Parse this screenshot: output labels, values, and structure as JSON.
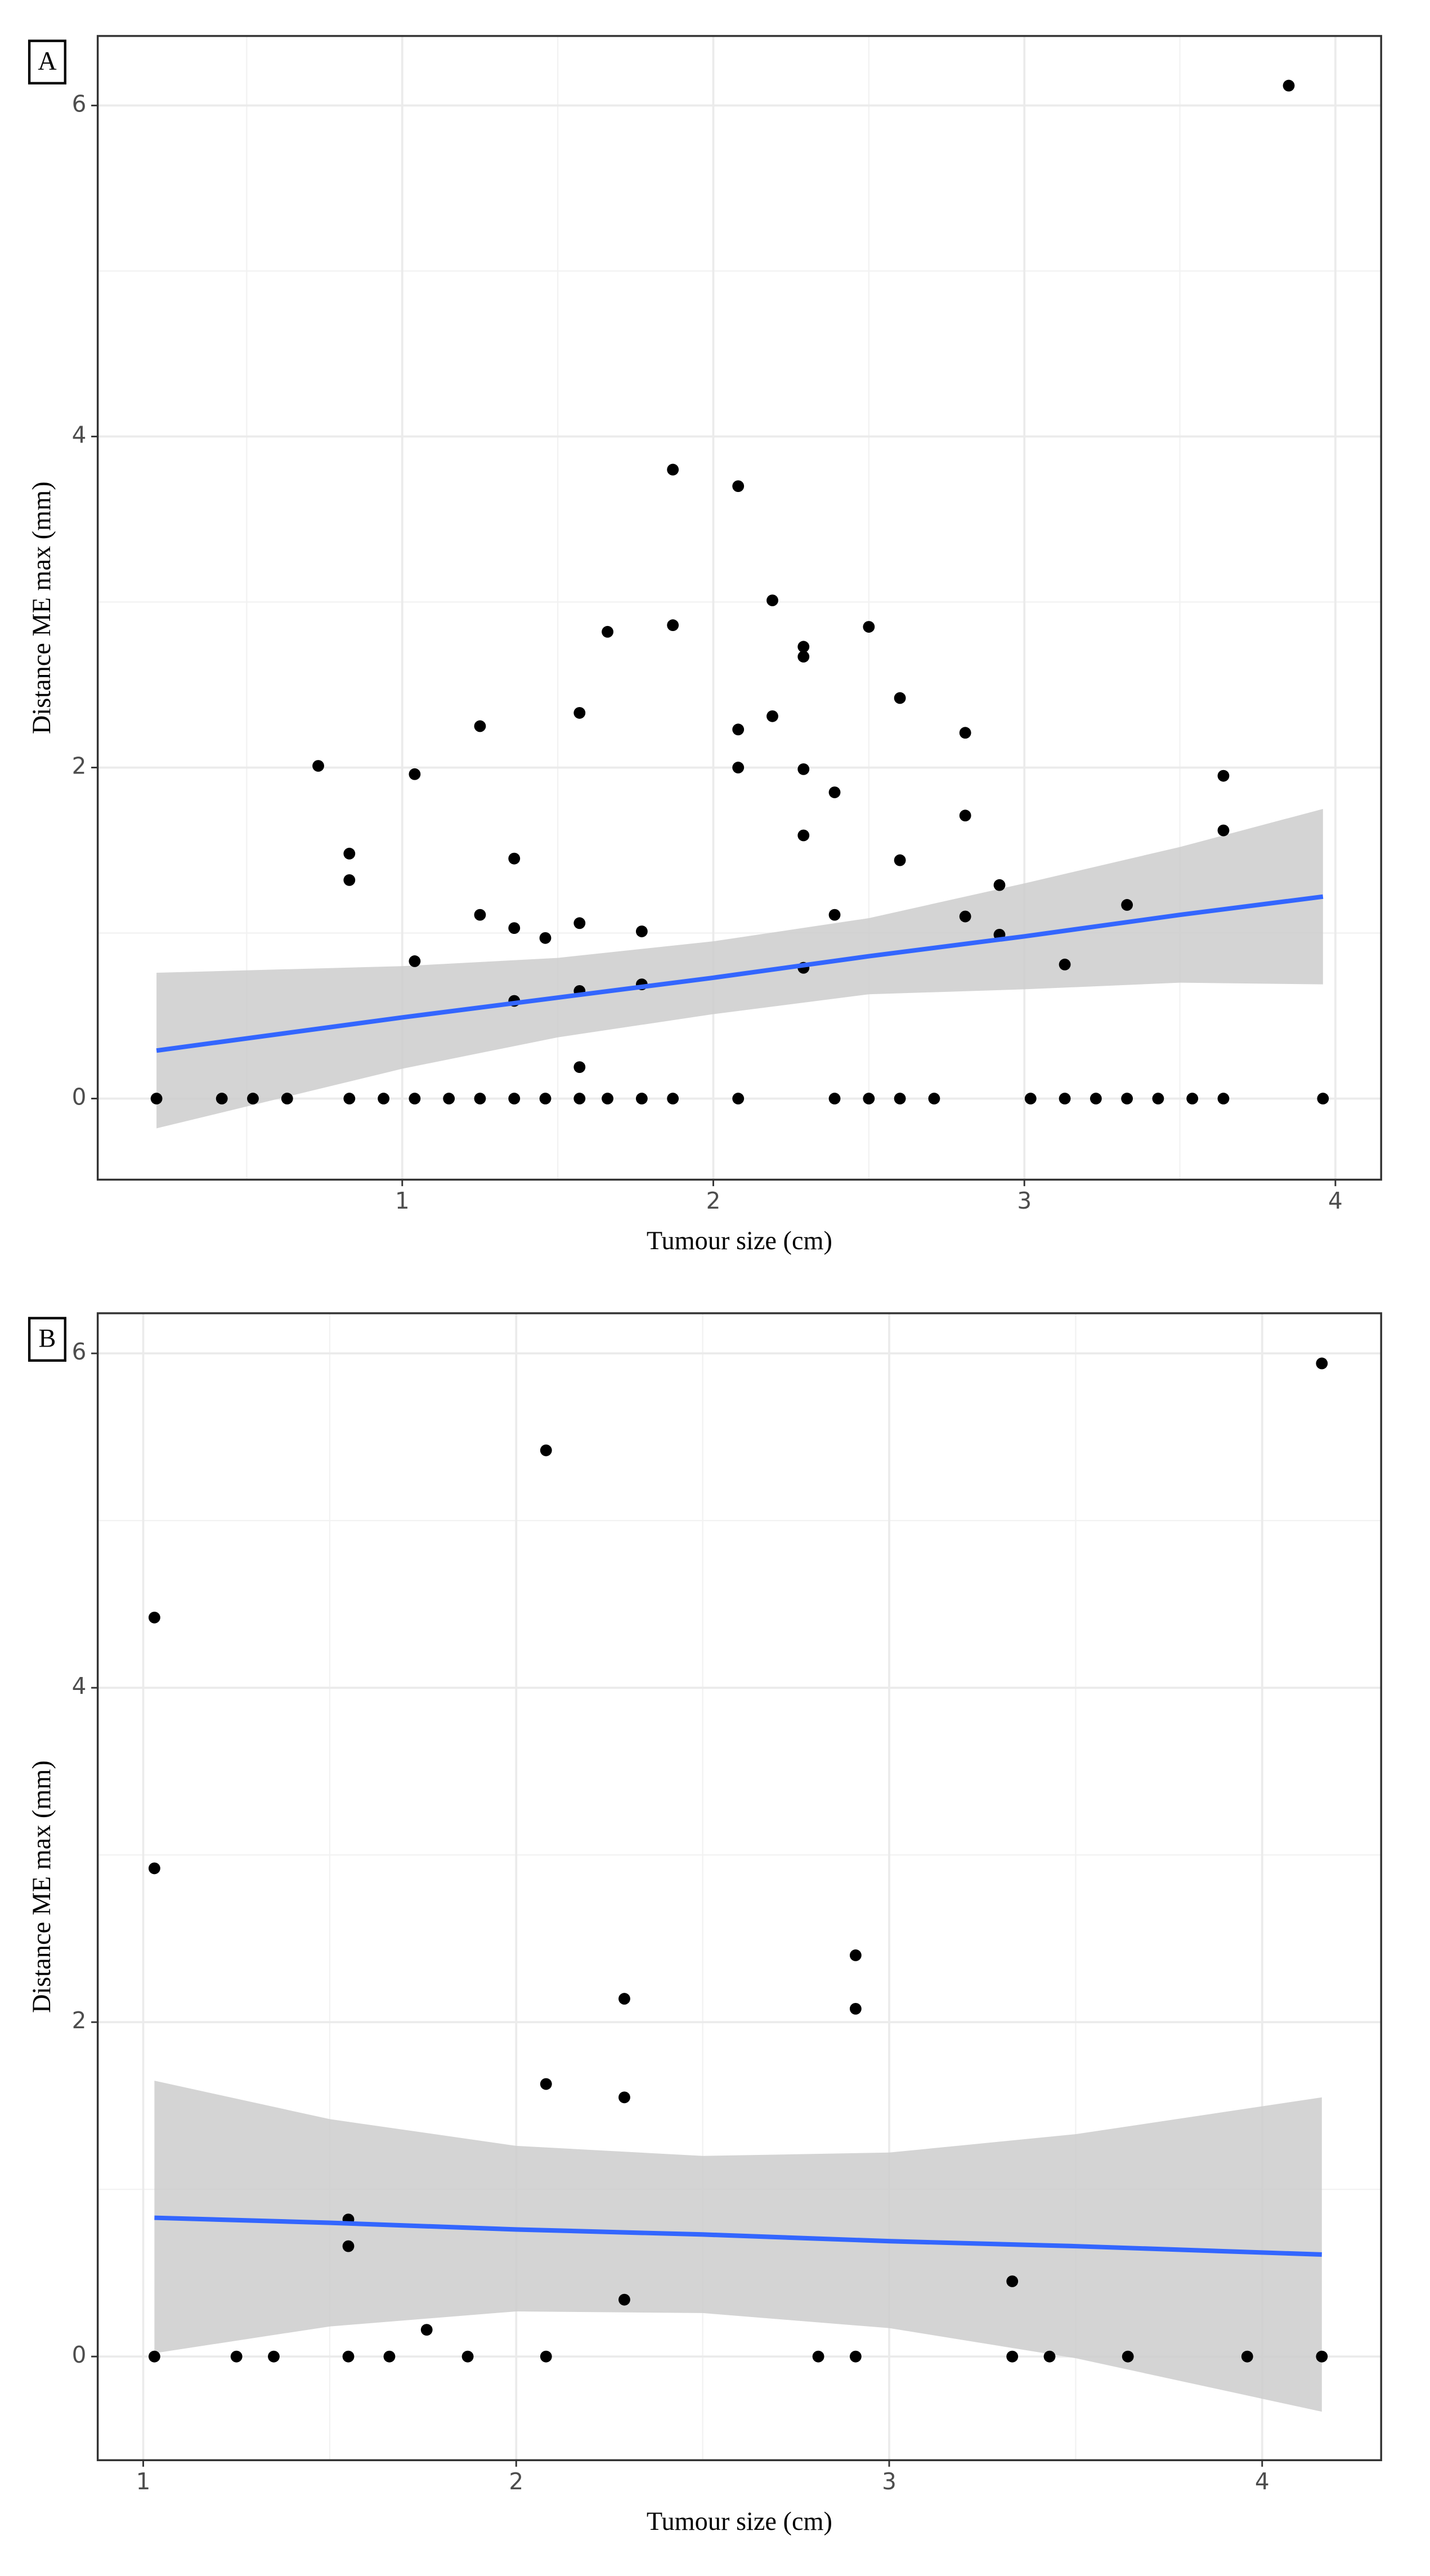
{
  "chart_data": [
    {
      "type": "scatter",
      "label": "A",
      "xlabel": "Tumour size (cm)",
      "ylabel": "Distance ME max (mm)",
      "xlim": [
        0.021,
        4.147
      ],
      "ylim": [
        -0.49,
        6.42
      ],
      "xticks": [
        1,
        2,
        3,
        4
      ],
      "yticks": [
        0,
        2,
        4,
        6
      ],
      "grid": true,
      "color": "#000000",
      "x": [
        0.21,
        0.42,
        0.52,
        0.63,
        0.73,
        0.83,
        0.83,
        0.83,
        0.94,
        1.04,
        1.04,
        1.04,
        1.15,
        1.25,
        1.25,
        1.25,
        1.36,
        1.36,
        1.36,
        1.36,
        1.46,
        1.46,
        1.57,
        1.57,
        1.57,
        1.57,
        1.57,
        1.66,
        1.66,
        1.77,
        1.77,
        1.77,
        1.87,
        1.87,
        1.87,
        2.08,
        2.08,
        2.08,
        2.08,
        2.19,
        2.19,
        2.29,
        2.29,
        2.29,
        2.29,
        2.29,
        2.39,
        2.39,
        2.39,
        2.5,
        2.5,
        2.6,
        2.6,
        2.6,
        2.71,
        2.81,
        2.81,
        2.81,
        2.92,
        2.92,
        3.02,
        3.13,
        3.13,
        3.23,
        3.33,
        3.33,
        3.43,
        3.54,
        3.64,
        3.64,
        3.64,
        3.85,
        3.96
      ],
      "values": [
        0,
        0,
        0,
        0,
        2.01,
        1.48,
        1.32,
        0,
        0,
        1.96,
        0.83,
        0,
        0,
        2.25,
        1.11,
        0,
        1.45,
        1.03,
        0.59,
        0,
        0.97,
        0,
        2.33,
        1.06,
        0.65,
        0.19,
        0,
        2.82,
        0,
        1.01,
        0.69,
        0,
        3.8,
        2.86,
        0,
        3.7,
        2.23,
        2.0,
        0,
        3.01,
        2.31,
        2.73,
        2.67,
        1.99,
        1.59,
        0.79,
        1.85,
        1.11,
        0,
        2.85,
        0,
        2.42,
        1.44,
        0,
        0,
        2.21,
        1.71,
        1.1,
        1.29,
        0.99,
        0,
        0.81,
        0,
        0,
        1.17,
        0,
        0,
        0,
        1.95,
        1.62,
        0,
        6.12,
        0
      ],
      "fit": {
        "color": "#3366ff",
        "band_color": "#cccccc",
        "x": [
          0.21,
          1,
          1.5,
          2,
          2.5,
          3,
          3.5,
          3.96
        ],
        "y": [
          0.29,
          0.49,
          0.61,
          0.73,
          0.86,
          0.98,
          1.11,
          1.22
        ],
        "upper": [
          0.76,
          0.8,
          0.85,
          0.95,
          1.09,
          1.3,
          1.52,
          1.75
        ],
        "lower": [
          -0.18,
          0.18,
          0.37,
          0.51,
          0.63,
          0.66,
          0.7,
          0.69
        ]
      }
    },
    {
      "type": "scatter",
      "label": "B",
      "xlabel": "Tumour size (cm)",
      "ylabel": "Distance ME max (mm)",
      "xlim": [
        0.878,
        4.319
      ],
      "ylim": [
        -0.62,
        6.24
      ],
      "xticks": [
        1,
        2,
        3,
        4
      ],
      "yticks": [
        0,
        2,
        4,
        6
      ],
      "grid": true,
      "color": "#000000",
      "x": [
        1.03,
        1.03,
        1.03,
        1.25,
        1.35,
        1.55,
        1.55,
        1.55,
        1.66,
        1.76,
        1.87,
        2.08,
        2.08,
        2.08,
        2.29,
        2.29,
        2.29,
        2.81,
        2.91,
        2.91,
        2.91,
        3.33,
        3.33,
        3.43,
        3.64,
        3.96,
        4.16,
        4.16
      ],
      "values": [
        4.42,
        2.92,
        0,
        0,
        0,
        0.82,
        0.66,
        0,
        0,
        0.16,
        0,
        5.42,
        1.63,
        0,
        2.14,
        1.55,
        0.34,
        0,
        2.4,
        2.08,
        0,
        0.45,
        0,
        0,
        0,
        0,
        5.94,
        0
      ],
      "fit": {
        "color": "#3366ff",
        "band_color": "#cccccc",
        "x": [
          1.03,
          1.5,
          2,
          2.5,
          3,
          3.5,
          4.16
        ],
        "y": [
          0.83,
          0.8,
          0.76,
          0.73,
          0.69,
          0.66,
          0.61
        ],
        "upper": [
          1.65,
          1.42,
          1.26,
          1.2,
          1.22,
          1.33,
          1.55
        ],
        "lower": [
          0.02,
          0.18,
          0.27,
          0.26,
          0.17,
          -0.01,
          -0.33
        ]
      }
    }
  ]
}
